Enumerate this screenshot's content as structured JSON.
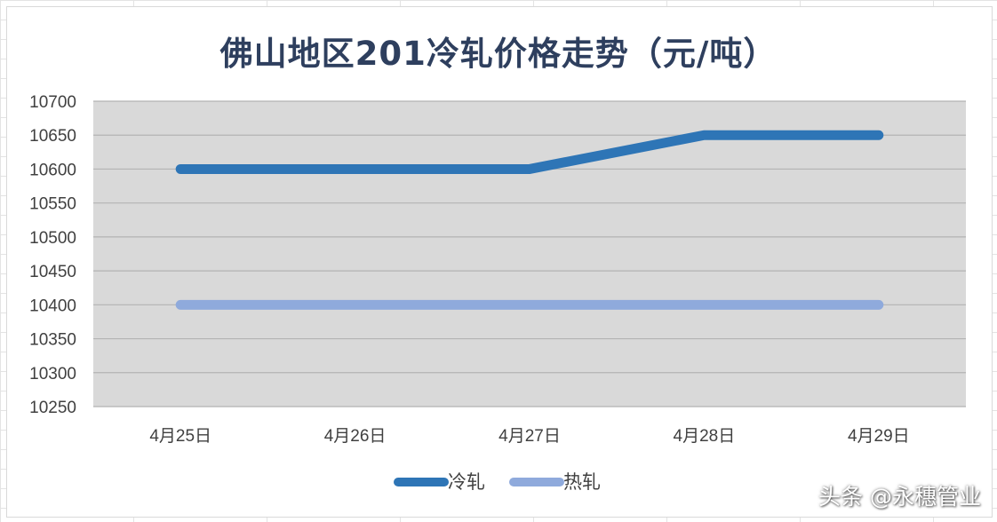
{
  "chart_data": {
    "type": "line",
    "title": "佛山地区201冷轧价格走势（元/吨）",
    "categories": [
      "4月25日",
      "4月26日",
      "4月27日",
      "4月28日",
      "4月29日"
    ],
    "series": [
      {
        "name": "冷轧",
        "values": [
          10600,
          10600,
          10600,
          10650,
          10650
        ],
        "color": "#2e75b6"
      },
      {
        "name": "热轧",
        "values": [
          10400,
          10400,
          10400,
          10400,
          10400
        ],
        "color": "#8faadc"
      }
    ],
    "ylim": [
      10250,
      10700
    ],
    "yticks": [
      10700,
      10650,
      10600,
      10550,
      10500,
      10450,
      10400,
      10350,
      10300,
      10250
    ],
    "grid": true,
    "plot_bg": "#d9d9d9",
    "legend_position": "bottom"
  },
  "watermark": "头条 @永穗管业"
}
